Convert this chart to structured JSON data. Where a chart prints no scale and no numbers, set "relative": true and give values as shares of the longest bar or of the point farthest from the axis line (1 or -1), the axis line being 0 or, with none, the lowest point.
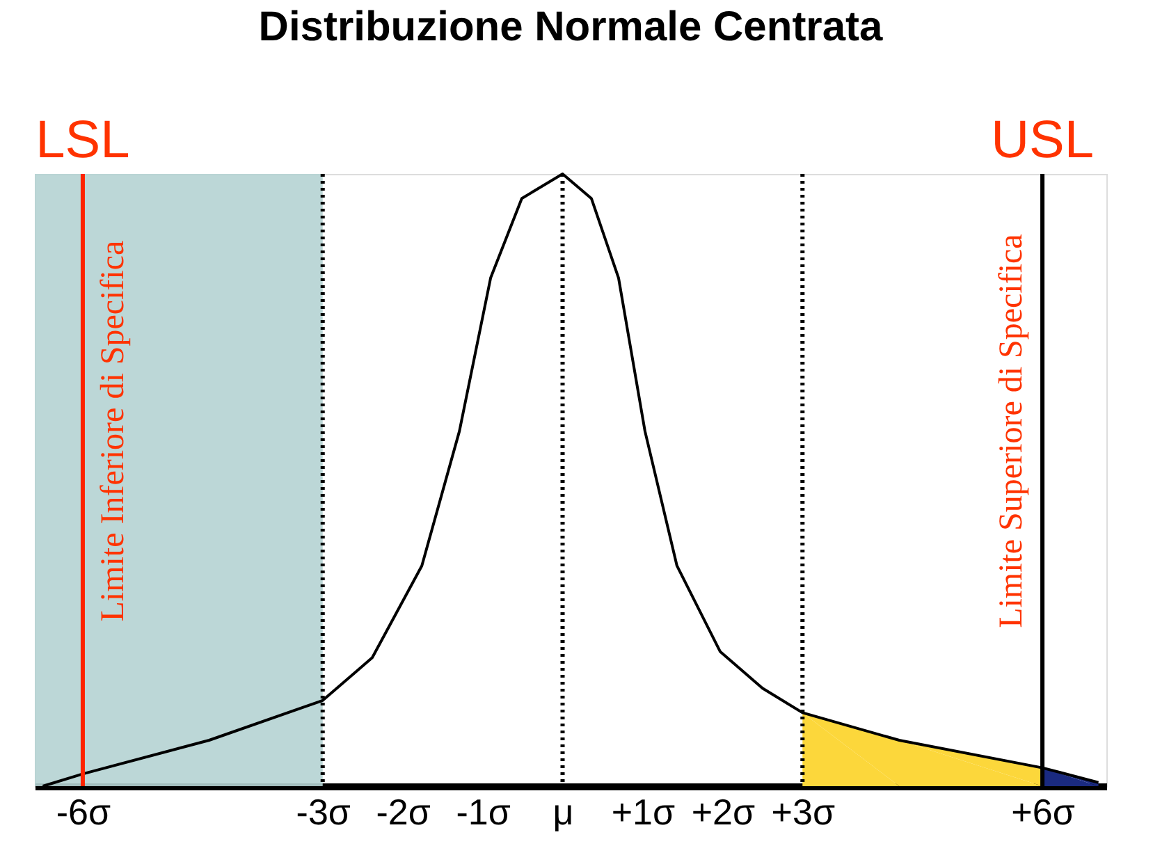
{
  "chart_data": {
    "type": "line",
    "title": "Distribuzione Normale Centrata",
    "relative": true,
    "xlim": [
      -6.6,
      6.8
    ],
    "xticks": [
      {
        "value": -6,
        "label": "-6σ"
      },
      {
        "value": -3,
        "label": "-3σ"
      },
      {
        "value": -2,
        "label": "-2σ"
      },
      {
        "value": -1,
        "label": "-1σ"
      },
      {
        "value": 0,
        "label": "μ"
      },
      {
        "value": 1,
        "label": "+1σ"
      },
      {
        "value": 2,
        "label": "+2σ"
      },
      {
        "value": 3,
        "label": "+3σ"
      },
      {
        "value": 6,
        "label": "+6σ"
      }
    ],
    "series": [
      {
        "type": "area",
        "color": "#fcd73b",
        "x": [
          3,
          4.21,
          6
        ],
        "values": [
          0.12,
          0.075,
          0.03
        ]
      },
      {
        "type": "area",
        "color": "#1a2a80",
        "x": [
          6,
          6.7
        ],
        "values": [
          0.03,
          0.006
        ]
      },
      {
        "color": "#000000",
        "x": [
          -6.5,
          -6,
          -4.42,
          -3,
          -2.38,
          -1.76,
          -1.29,
          -0.9,
          -0.51,
          0,
          0.36,
          0.7,
          1.03,
          1.43,
          1.97,
          2.5,
          3,
          4.21,
          6,
          6.7
        ],
        "values": [
          0,
          0.02,
          0.075,
          0.14,
          0.21,
          0.36,
          0.58,
          0.83,
          0.96,
          1,
          0.96,
          0.83,
          0.58,
          0.36,
          0.22,
          0.16,
          0.12,
          0.075,
          0.03,
          0.006
        ]
      }
    ],
    "bands": [
      {
        "axis": "x",
        "from": -6.6,
        "to": -3,
        "color": "#b5d3d3"
      }
    ],
    "ref_lines": [
      {
        "axis": "x",
        "value": -6,
        "label": "LSL",
        "color": "#ff2200",
        "line_style": "solid"
      },
      {
        "axis": "x",
        "value": 6,
        "label": "USL",
        "color": "#000000",
        "line_style": "solid"
      },
      {
        "axis": "x",
        "value": -3,
        "color": "#000000",
        "line_style": "dotted"
      },
      {
        "axis": "x",
        "value": 3,
        "color": "#000000",
        "line_style": "dotted"
      },
      {
        "axis": "x",
        "value": 0,
        "color": "#000000",
        "line_style": "dotted"
      }
    ],
    "annotations": [
      "Limite Inferiore di Specifica",
      "Limite Superiore di Specifica"
    ],
    "grid": false
  }
}
